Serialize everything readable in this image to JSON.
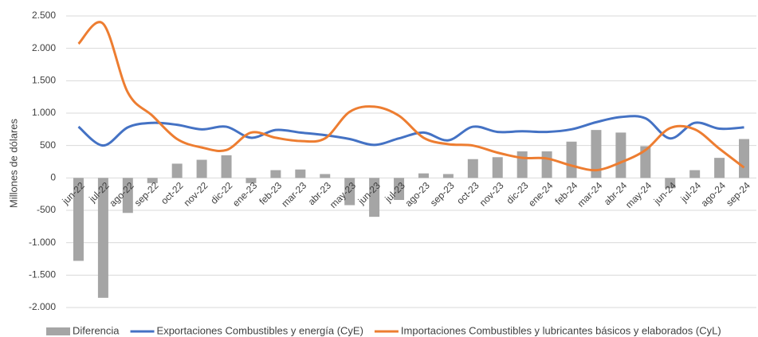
{
  "chart_data": {
    "type": "bar-line",
    "y_label": "Millones de dólares",
    "categories": [
      "jun-22",
      "jul-22",
      "ago-22",
      "sep-22",
      "oct-22",
      "nov-22",
      "dic-22",
      "ene-23",
      "feb-23",
      "mar-23",
      "abr-23",
      "may-23",
      "jun-23",
      "jul-23",
      "ago-23",
      "sep-23",
      "oct-23",
      "nov-23",
      "dic-23",
      "ene-24",
      "feb-24",
      "mar-24",
      "abr-24",
      "may-24",
      "jun-24",
      "jul-24",
      "ago-24",
      "sep-24"
    ],
    "series": [
      {
        "name": "Diferencia",
        "type": "bar",
        "color": "#a5a5a5",
        "values": [
          -1280,
          -1850,
          -540,
          -80,
          220,
          280,
          350,
          -80,
          120,
          130,
          60,
          -420,
          -600,
          -340,
          70,
          60,
          290,
          320,
          410,
          410,
          560,
          740,
          700,
          490,
          -160,
          120,
          310,
          600
        ]
      },
      {
        "name": "Exportaciones Combustibles y energía (CyE)",
        "type": "line",
        "color": "#4472c4",
        "values": [
          790,
          500,
          780,
          850,
          820,
          750,
          790,
          620,
          740,
          700,
          660,
          600,
          510,
          610,
          700,
          580,
          790,
          710,
          720,
          710,
          750,
          860,
          940,
          920,
          610,
          850,
          760,
          780
        ]
      },
      {
        "name": "Importaciones Combustibles y lubricantes básicos y elaborados (CyL)",
        "type": "line",
        "color": "#ed7d31",
        "values": [
          2070,
          2380,
          1320,
          960,
          600,
          470,
          430,
          700,
          620,
          570,
          610,
          1020,
          1100,
          960,
          620,
          520,
          500,
          390,
          310,
          300,
          190,
          120,
          240,
          430,
          770,
          750,
          450,
          160
        ]
      }
    ],
    "ylim": [
      -2000,
      2500
    ],
    "yticks": [
      {
        "value": -2000,
        "label": "-2.000"
      },
      {
        "value": -1500,
        "label": "-1.500"
      },
      {
        "value": -1000,
        "label": "-1.000"
      },
      -500,
      0,
      500,
      {
        "value": 1000,
        "label": "1.000"
      },
      {
        "value": 1500,
        "label": "1.500"
      },
      {
        "value": 2000,
        "label": "2.000"
      },
      {
        "value": 2500,
        "label": "2.500"
      }
    ],
    "grid": true
  }
}
